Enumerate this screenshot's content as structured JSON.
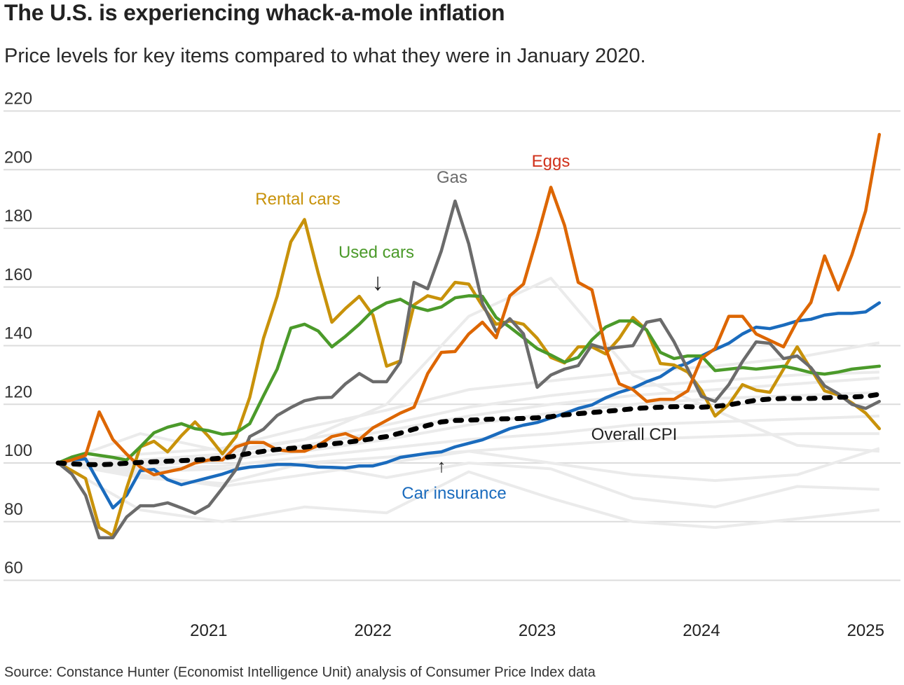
{
  "title": "The U.S. is experiencing whack-a-mole inflation",
  "subtitle": "Price levels for key items compared to what they were in January 2020.",
  "source": "Source: Constance Hunter (Economist Intelligence Unit) analysis of Consumer Price Index data",
  "chart_data": {
    "type": "line",
    "title": "The U.S. is experiencing whack-a-mole inflation",
    "xlabel": "",
    "ylabel": "",
    "ylim": [
      60,
      220
    ],
    "yticks": [
      "220",
      "200",
      "180",
      "160",
      "140",
      "120",
      "100",
      "80",
      "60"
    ],
    "xticks": [
      "2021",
      "2022",
      "2023",
      "2024",
      "2025"
    ],
    "grid": true,
    "start": "2020-02",
    "series": [
      {
        "name": "Eggs",
        "color": "#dd6600",
        "values": [
          100,
          101,
          102.6,
          117.4,
          108,
          103,
          98.6,
          96,
          97,
          98,
          100,
          101,
          101,
          105.5,
          107,
          107,
          104.5,
          104,
          104,
          106,
          109,
          110,
          108,
          112,
          114.5,
          117,
          119,
          130.5,
          137.7,
          138,
          144,
          148,
          142.7,
          157,
          161,
          177,
          194,
          181,
          161.6,
          159,
          139,
          127,
          125,
          121,
          121.7,
          121.7,
          124.6,
          135.6,
          139,
          150,
          150,
          144,
          141.8,
          139.6,
          148.4,
          154.7,
          170.6,
          159,
          171,
          186,
          212
        ]
      },
      {
        "name": "Gas",
        "color": "#6b6b6b",
        "values": [
          100,
          96.2,
          89,
          74.5,
          74.5,
          81.6,
          85.4,
          85.4,
          86.4,
          84.7,
          82.8,
          85.4,
          91.4,
          97.8,
          109,
          111.5,
          116.2,
          118.9,
          121.2,
          122.2,
          122.4,
          127,
          130.5,
          127.7,
          127.7,
          134.4,
          161.6,
          159.4,
          172.3,
          189.3,
          174.7,
          154.4,
          144.9,
          149.2,
          144,
          125.8,
          130,
          132,
          133.2,
          140.3,
          138.9,
          139.5,
          140,
          148,
          148.9,
          141.3,
          132,
          122.7,
          121,
          126.7,
          134.6,
          141.3,
          140.8,
          135.6,
          136.5,
          132.5,
          126.3,
          123.6,
          120,
          118.6,
          121
        ]
      },
      {
        "name": "Rental cars",
        "color": "#c8920a",
        "values": [
          100,
          97.4,
          94.7,
          78,
          75.2,
          91.4,
          105.5,
          107.4,
          103.8,
          109.3,
          114,
          109,
          103.1,
          109,
          122.4,
          142.5,
          156.8,
          175.4,
          183,
          164.7,
          148,
          152.7,
          156.8,
          150.4,
          133,
          134.8,
          153.9,
          157,
          155.8,
          161.6,
          161,
          153.5,
          147.3,
          148.4,
          147.3,
          142.5,
          136,
          134.1,
          139.6,
          139.6,
          137.2,
          142.5,
          149.6,
          145.3,
          133.9,
          133.4,
          131,
          124.8,
          116,
          120,
          126.7,
          124.8,
          124.1,
          132,
          139.6,
          132,
          124.6,
          123.2,
          120.5,
          117,
          111.7
        ]
      },
      {
        "name": "Used cars",
        "color": "#4b9a2a",
        "values": [
          100,
          102,
          103.3,
          102.6,
          101.9,
          101,
          105.5,
          110.3,
          112.2,
          113.4,
          111.7,
          111,
          109.8,
          110.3,
          113.4,
          122.9,
          132,
          146,
          147.3,
          145,
          139.6,
          143.2,
          147.3,
          152,
          154.6,
          155.8,
          153.2,
          152,
          153.2,
          156.3,
          157,
          156.8,
          149.6,
          146.3,
          142.7,
          139,
          136.8,
          134.4,
          136,
          142,
          146.3,
          148.4,
          148.4,
          145.3,
          137.7,
          135.6,
          136.5,
          136.5,
          131.5,
          132,
          132.5,
          132,
          132.5,
          133,
          132,
          130.8,
          130.3,
          131,
          132,
          132.5,
          133
        ]
      },
      {
        "name": "Car insurance",
        "color": "#1a6bbd",
        "values": [
          100,
          101,
          101.4,
          93,
          84.7,
          89,
          97.4,
          97.8,
          94.3,
          92.6,
          93.8,
          95,
          96.2,
          97.8,
          98.6,
          99,
          99.5,
          99.5,
          99.2,
          98.6,
          98.5,
          98.3,
          99,
          99,
          100.2,
          101.9,
          102.6,
          103.3,
          103.8,
          105.5,
          106.7,
          107.9,
          109.8,
          111.7,
          112.9,
          113.8,
          115.3,
          116.9,
          118.6,
          119.8,
          122.2,
          124.1,
          125.5,
          127.7,
          129.4,
          132.5,
          134,
          136.5,
          138.7,
          140.8,
          144,
          146.3,
          145.8,
          147,
          148.4,
          149,
          150.4,
          151,
          151,
          151.5,
          154.6
        ]
      },
      {
        "name": "Overall CPI",
        "color": "#000000",
        "dashed": true,
        "values": [
          100,
          99.7,
          99.5,
          99.4,
          99.6,
          99.9,
          100.2,
          100.4,
          100.6,
          100.8,
          101,
          101.3,
          101.7,
          102.4,
          103.3,
          104,
          104.6,
          105,
          105.4,
          105.9,
          106.5,
          107,
          107.6,
          108.3,
          109,
          110.2,
          111.5,
          112.8,
          114,
          114.5,
          114.6,
          114.8,
          115,
          115.1,
          115.2,
          115.4,
          115.8,
          116.4,
          116.8,
          117.2,
          117.6,
          118,
          118.5,
          118.8,
          119,
          119.2,
          119.2,
          119,
          119.3,
          119.8,
          120.6,
          121.4,
          121.8,
          122,
          122,
          122,
          122.2,
          122.4,
          122.5,
          122.7,
          123.4
        ]
      }
    ],
    "other_series_color": "#ebebeb",
    "other_dates": [
      "2020-02",
      "2020-08",
      "2021-02",
      "2021-08",
      "2022-02",
      "2022-08",
      "2023-02",
      "2023-08",
      "2024-02",
      "2024-08",
      "2025-02"
    ],
    "other_series": [
      [
        100,
        103,
        105,
        112,
        118,
        125,
        128,
        131,
        133,
        136,
        141
      ],
      [
        100,
        101,
        103,
        108,
        113,
        119,
        123,
        126,
        128,
        130,
        131
      ],
      [
        100,
        100,
        102,
        106,
        111,
        116,
        120,
        123,
        125,
        127,
        129
      ],
      [
        100,
        99,
        101,
        104,
        108,
        113,
        117,
        120,
        122,
        123,
        124
      ],
      [
        100,
        98,
        99,
        102,
        105,
        108,
        110,
        113,
        114,
        115,
        116
      ],
      [
        100,
        97,
        98,
        100,
        102,
        104,
        106,
        108,
        109,
        110,
        110
      ],
      [
        100,
        110,
        104,
        108,
        120,
        150,
        163,
        130,
        118,
        106,
        104
      ],
      [
        100,
        95,
        93,
        100,
        95,
        100,
        98,
        88,
        85,
        92,
        91
      ],
      [
        100,
        84,
        80,
        85,
        83,
        97,
        88,
        80,
        78,
        81,
        84
      ],
      [
        100,
        96,
        92,
        96,
        100,
        104,
        100,
        96,
        94,
        96,
        105
      ]
    ]
  },
  "annotations": {
    "rental_cars": "Rental cars",
    "used_cars": "Used cars",
    "gas": "Gas",
    "eggs": "Eggs",
    "car_insurance": "Car insurance",
    "overall_cpi": "Overall CPI",
    "arrow_down": "↓",
    "arrow_up": "↑"
  }
}
